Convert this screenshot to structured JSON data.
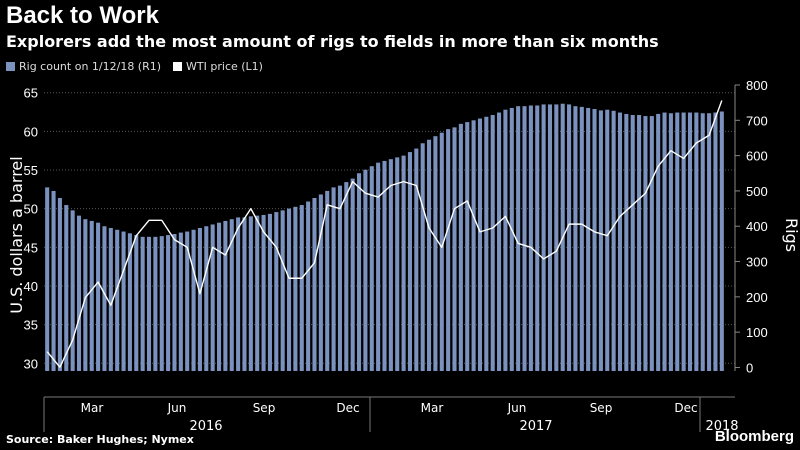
{
  "title": "Back to Work",
  "subtitle": "Explorers add the most amount of rigs to fields in more than six months",
  "source": "Source: Baker Hughes; Nymex",
  "brand": "Bloomberg",
  "colors": {
    "bars": "#7a92bd",
    "line": "#ffffff",
    "grid": "#555555",
    "background": "#000000"
  },
  "chart_data": {
    "type": "bar",
    "legend": [
      {
        "label": "Rig count on 1/12/18 (R1)",
        "kind": "bar"
      },
      {
        "label": "WTI price (L1)",
        "kind": "line"
      }
    ],
    "left_axis": {
      "label": "U.S. dollars a barrel",
      "min": 29,
      "max": 66,
      "ticks": [
        30,
        35,
        40,
        45,
        50,
        55,
        60,
        65
      ]
    },
    "right_axis": {
      "label": "Rigs",
      "min": -10,
      "max": 800,
      "ticks": [
        0,
        100,
        200,
        300,
        400,
        500,
        600,
        700,
        800
      ]
    },
    "x_month_ticks": [
      "Mar",
      "Jun",
      "Sep",
      "Dec",
      "Mar",
      "Jun",
      "Sep",
      "Dec"
    ],
    "x_year_labels": [
      "2016",
      "2017",
      "2018"
    ],
    "grid": true,
    "series": [
      {
        "name": "Rig count on 1/12/18 (R1)",
        "axis": "right",
        "kind": "bar",
        "values": [
          510,
          500,
          480,
          460,
          445,
          430,
          420,
          415,
          410,
          400,
          395,
          390,
          385,
          380,
          375,
          370,
          370,
          370,
          372,
          375,
          378,
          382,
          385,
          390,
          395,
          400,
          405,
          410,
          415,
          420,
          425,
          425,
          428,
          430,
          432,
          435,
          440,
          445,
          450,
          455,
          460,
          470,
          480,
          490,
          500,
          510,
          515,
          525,
          535,
          550,
          560,
          570,
          580,
          585,
          590,
          595,
          600,
          610,
          620,
          635,
          645,
          655,
          665,
          675,
          680,
          690,
          695,
          700,
          705,
          710,
          715,
          722,
          730,
          735,
          740,
          740,
          742,
          742,
          745,
          745,
          745,
          747,
          745,
          740,
          738,
          735,
          732,
          728,
          730,
          727,
          722,
          718,
          715,
          715,
          712,
          712,
          718,
          722,
          720,
          722,
          722,
          722,
          722,
          720,
          720,
          722,
          725
        ]
      },
      {
        "name": "WTI price (L1)",
        "axis": "left",
        "kind": "line",
        "x": [
          0,
          2,
          4,
          6,
          8,
          10,
          12,
          14,
          16,
          18,
          20,
          22,
          24,
          26,
          28,
          30,
          32,
          34,
          36,
          38,
          40,
          42,
          44,
          46,
          48,
          50,
          52,
          54,
          56,
          58,
          60,
          62,
          64,
          66,
          68,
          70,
          72,
          74,
          76,
          78,
          80,
          82,
          84,
          86,
          88,
          90,
          92,
          94,
          96,
          98,
          100,
          102,
          104,
          106
        ],
        "values": [
          31.5,
          29.5,
          33,
          38.5,
          40.5,
          37.5,
          42,
          46.5,
          48.5,
          48.5,
          46,
          45,
          39,
          45,
          44,
          47.5,
          50,
          47,
          45,
          41,
          41,
          43,
          50.5,
          50,
          53.5,
          52,
          51.5,
          53,
          53.5,
          53,
          47.5,
          45,
          50,
          51,
          47,
          47.5,
          49,
          45.5,
          45,
          43.5,
          44.5,
          48,
          48,
          47,
          46.5,
          49,
          50.5,
          52,
          55.5,
          57.5,
          56.5,
          58.5,
          59.5,
          64
        ]
      }
    ]
  }
}
